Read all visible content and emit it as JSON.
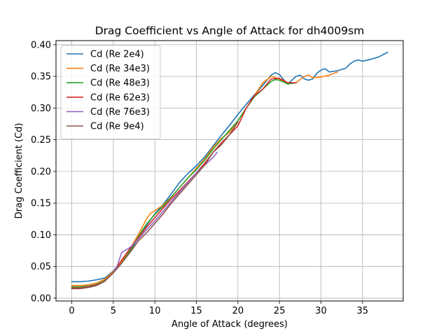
{
  "chart_data": {
    "type": "line",
    "title": "Drag Coefficient vs Angle of Attack for dh4009sm",
    "xlabel": "Angle of Attack (degrees)",
    "ylabel": "Drag Coefficient (Cd)",
    "xlim": [
      -1.9,
      39.9
    ],
    "ylim": [
      -0.0045,
      0.4065
    ],
    "xticks": [
      0,
      5,
      10,
      15,
      20,
      25,
      30,
      35
    ],
    "yticks": [
      0.0,
      0.05,
      0.1,
      0.15,
      0.2,
      0.25,
      0.3,
      0.35,
      0.4
    ],
    "ytick_labels": [
      "0.00",
      "0.05",
      "0.10",
      "0.15",
      "0.20",
      "0.25",
      "0.30",
      "0.35",
      "0.40"
    ],
    "grid": true,
    "legend_position": "upper-left",
    "series": [
      {
        "name": "Cd (Re 2e4)",
        "color": "#1f77b4",
        "x": [
          0,
          1,
          2,
          3,
          4,
          5,
          6,
          7,
          8,
          9,
          10,
          11,
          12,
          13,
          14,
          15,
          16,
          17,
          18,
          19,
          20,
          21,
          22,
          23,
          24,
          24.5,
          25,
          25.5,
          26,
          26.5,
          27,
          27.5,
          28,
          28.5,
          29,
          29.5,
          30,
          30.5,
          31,
          32,
          33,
          33.5,
          34,
          34.5,
          35,
          36,
          37,
          38
        ],
        "y": [
          0.026,
          0.026,
          0.027,
          0.029,
          0.032,
          0.043,
          0.058,
          0.073,
          0.095,
          0.115,
          0.133,
          0.148,
          0.165,
          0.183,
          0.197,
          0.209,
          0.223,
          0.24,
          0.257,
          0.273,
          0.29,
          0.306,
          0.321,
          0.336,
          0.352,
          0.356,
          0.353,
          0.345,
          0.338,
          0.344,
          0.35,
          0.352,
          0.346,
          0.344,
          0.346,
          0.355,
          0.36,
          0.362,
          0.357,
          0.359,
          0.363,
          0.37,
          0.374,
          0.376,
          0.374,
          0.377,
          0.381,
          0.388
        ]
      },
      {
        "name": "Cd (Re 34e3)",
        "color": "#ff7f0e",
        "x": [
          0,
          1,
          2,
          3,
          4,
          5,
          6,
          7,
          8,
          9,
          9.5,
          10,
          11,
          12,
          13,
          14,
          15,
          16,
          17,
          18,
          19,
          20,
          21,
          22,
          23,
          24,
          25,
          26,
          27,
          28,
          28.5,
          29,
          30,
          31,
          32
        ],
        "y": [
          0.02,
          0.02,
          0.021,
          0.024,
          0.03,
          0.042,
          0.058,
          0.078,
          0.1,
          0.125,
          0.134,
          0.138,
          0.147,
          0.16,
          0.175,
          0.19,
          0.205,
          0.22,
          0.238,
          0.252,
          0.262,
          0.28,
          0.3,
          0.32,
          0.34,
          0.35,
          0.346,
          0.338,
          0.34,
          0.35,
          0.352,
          0.348,
          0.349,
          0.352,
          0.357
        ]
      },
      {
        "name": "Cd (Re 48e3)",
        "color": "#2ca02c",
        "x": [
          0,
          1,
          2,
          3,
          4,
          5,
          6,
          7,
          8,
          9,
          10,
          11,
          12,
          13,
          14,
          15,
          16,
          17,
          18,
          19,
          20,
          21,
          22,
          23,
          24,
          24.5,
          25,
          26,
          27
        ],
        "y": [
          0.018,
          0.018,
          0.019,
          0.022,
          0.028,
          0.04,
          0.055,
          0.075,
          0.097,
          0.117,
          0.132,
          0.145,
          0.16,
          0.175,
          0.19,
          0.203,
          0.218,
          0.235,
          0.25,
          0.265,
          0.28,
          0.3,
          0.318,
          0.33,
          0.342,
          0.345,
          0.344,
          0.338,
          0.34
        ]
      },
      {
        "name": "Cd (Re 62e3)",
        "color": "#d62728",
        "x": [
          0,
          1,
          2,
          3,
          4,
          5,
          6,
          7,
          8,
          9,
          10,
          11,
          12,
          13,
          14,
          15,
          16,
          17,
          18,
          19,
          20,
          21,
          22,
          23,
          24,
          25,
          26,
          27
        ],
        "y": [
          0.016,
          0.016,
          0.018,
          0.021,
          0.027,
          0.04,
          0.06,
          0.078,
          0.095,
          0.112,
          0.127,
          0.142,
          0.157,
          0.17,
          0.184,
          0.198,
          0.213,
          0.23,
          0.245,
          0.258,
          0.272,
          0.3,
          0.32,
          0.33,
          0.346,
          0.347,
          0.34,
          0.34
        ]
      },
      {
        "name": "Cd (Re 76e3)",
        "color": "#9467bd",
        "x": [
          0,
          1,
          2,
          3,
          4,
          5,
          5.5,
          6,
          7,
          8,
          9,
          10,
          11,
          12,
          13,
          14,
          15,
          16,
          17,
          17.5
        ],
        "y": [
          0.015,
          0.015,
          0.017,
          0.02,
          0.027,
          0.04,
          0.052,
          0.072,
          0.08,
          0.093,
          0.108,
          0.122,
          0.137,
          0.153,
          0.168,
          0.183,
          0.198,
          0.21,
          0.222,
          0.23
        ]
      },
      {
        "name": "Cd (Re 9e4)",
        "color": "#8c564b",
        "x": [
          0,
          1,
          2,
          3,
          4,
          5,
          6,
          7,
          8,
          9,
          10,
          11,
          12,
          13,
          14,
          15,
          16,
          17,
          18,
          19,
          20
        ],
        "y": [
          0.015,
          0.015,
          0.017,
          0.02,
          0.027,
          0.04,
          0.055,
          0.072,
          0.09,
          0.103,
          0.118,
          0.133,
          0.15,
          0.165,
          0.18,
          0.195,
          0.21,
          0.23,
          0.242,
          0.258,
          0.278
        ]
      }
    ]
  }
}
